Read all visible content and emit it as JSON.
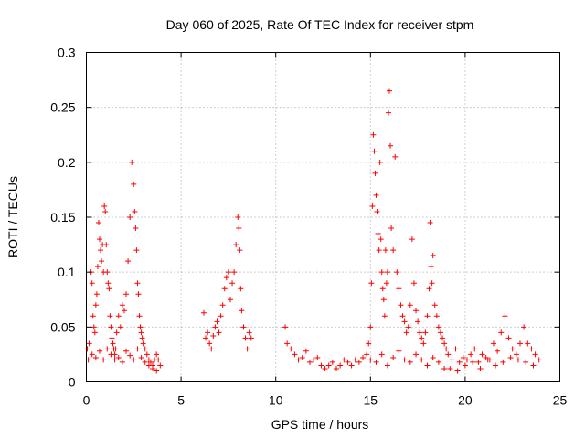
{
  "chart_data": {
    "type": "scatter",
    "title": "Day 060 of 2025, Rate Of TEC Index for receiver stpm",
    "xlabel": "GPS time / hours",
    "ylabel": "ROTI / TECUs",
    "xlim": [
      0,
      25
    ],
    "ylim": [
      0,
      0.3
    ],
    "xticks": [
      "0",
      "5",
      "10",
      "15",
      "20",
      "25"
    ],
    "yticks": [
      "0",
      "0.05",
      "0.1",
      "0.15",
      "0.2",
      "0.25",
      "0.3"
    ],
    "grid": true,
    "marker": "plus",
    "marker_color": "#ff0000",
    "series": [
      {
        "name": "ROTI",
        "x": [
          0.05,
          0.15,
          0.25,
          0.3,
          0.35,
          0.4,
          0.45,
          0.5,
          0.55,
          0.6,
          0.65,
          0.7,
          0.75,
          0.8,
          0.85,
          0.9,
          0.95,
          1.0,
          1.05,
          1.1,
          1.15,
          1.2,
          1.25,
          1.3,
          1.35,
          1.4,
          1.45,
          1.5,
          1.55,
          1.6,
          1.7,
          1.8,
          1.9,
          2.0,
          2.1,
          2.2,
          2.3,
          2.4,
          2.5,
          2.55,
          2.6,
          2.65,
          2.7,
          2.75,
          2.8,
          2.85,
          2.9,
          2.95,
          3.0,
          3.1,
          3.2,
          3.3,
          3.4,
          3.5,
          3.6,
          3.7,
          3.8,
          3.9,
          0.1,
          0.3,
          0.5,
          0.7,
          0.9,
          1.1,
          1.3,
          1.5,
          1.7,
          1.9,
          2.1,
          2.3,
          2.5,
          2.7,
          2.9,
          3.1,
          3.3,
          3.5,
          3.7,
          6.2,
          6.3,
          6.4,
          6.5,
          6.6,
          6.7,
          6.8,
          6.9,
          7.0,
          7.1,
          7.2,
          7.3,
          7.4,
          7.5,
          7.6,
          7.7,
          7.8,
          7.9,
          8.0,
          8.05,
          8.1,
          8.15,
          8.2,
          8.3,
          8.4,
          8.5,
          8.6,
          8.7,
          10.5,
          10.6,
          10.8,
          11.0,
          11.2,
          11.4,
          11.6,
          11.8,
          12.0,
          12.2,
          12.4,
          12.6,
          12.8,
          13.0,
          13.2,
          13.4,
          13.6,
          13.8,
          14.0,
          14.2,
          14.4,
          14.6,
          14.8,
          14.9,
          15.0,
          15.05,
          15.1,
          15.15,
          15.2,
          15.25,
          15.3,
          15.35,
          15.4,
          15.45,
          15.5,
          15.55,
          15.6,
          15.65,
          15.7,
          15.75,
          15.8,
          15.85,
          15.9,
          15.95,
          16.0,
          16.05,
          16.1,
          16.2,
          16.3,
          16.4,
          16.5,
          16.6,
          16.7,
          16.8,
          16.9,
          17.0,
          17.1,
          17.2,
          17.3,
          17.4,
          17.5,
          17.6,
          17.7,
          17.8,
          17.9,
          18.0,
          18.1,
          18.15,
          18.2,
          18.25,
          18.3,
          18.4,
          18.5,
          18.6,
          18.7,
          18.8,
          18.9,
          19.0,
          15.0,
          15.3,
          15.6,
          15.9,
          16.2,
          16.5,
          16.8,
          17.1,
          17.4,
          17.7,
          18.0,
          18.3,
          18.6,
          18.9,
          19.1,
          19.3,
          19.5,
          19.7,
          19.9,
          20.1,
          20.3,
          20.5,
          20.7,
          20.9,
          21.1,
          21.3,
          21.5,
          21.7,
          21.9,
          22.1,
          22.3,
          22.5,
          22.7,
          22.9,
          23.1,
          23.3,
          23.5,
          23.7,
          23.9,
          19.2,
          19.6,
          20.0,
          20.4,
          20.8,
          21.2,
          21.6,
          22.0,
          22.4,
          22.8,
          23.2,
          23.6
        ],
        "y": [
          0.03,
          0.035,
          0.1,
          0.09,
          0.06,
          0.05,
          0.045,
          0.07,
          0.08,
          0.105,
          0.145,
          0.13,
          0.12,
          0.11,
          0.125,
          0.1,
          0.16,
          0.155,
          0.125,
          0.1,
          0.09,
          0.085,
          0.06,
          0.05,
          0.04,
          0.035,
          0.03,
          0.025,
          0.03,
          0.045,
          0.06,
          0.05,
          0.07,
          0.065,
          0.08,
          0.11,
          0.15,
          0.2,
          0.18,
          0.155,
          0.14,
          0.12,
          0.09,
          0.08,
          0.06,
          0.05,
          0.045,
          0.04,
          0.035,
          0.03,
          0.025,
          0.02,
          0.018,
          0.015,
          0.02,
          0.025,
          0.02,
          0.015,
          0.02,
          0.025,
          0.022,
          0.028,
          0.02,
          0.03,
          0.025,
          0.02,
          0.022,
          0.018,
          0.028,
          0.024,
          0.02,
          0.03,
          0.022,
          0.018,
          0.015,
          0.012,
          0.01,
          0.063,
          0.04,
          0.045,
          0.035,
          0.03,
          0.042,
          0.05,
          0.055,
          0.045,
          0.06,
          0.07,
          0.085,
          0.095,
          0.1,
          0.075,
          0.09,
          0.1,
          0.125,
          0.15,
          0.14,
          0.12,
          0.085,
          0.065,
          0.05,
          0.04,
          0.03,
          0.045,
          0.04,
          0.05,
          0.035,
          0.03,
          0.025,
          0.02,
          0.022,
          0.028,
          0.018,
          0.02,
          0.022,
          0.015,
          0.012,
          0.015,
          0.018,
          0.012,
          0.015,
          0.02,
          0.018,
          0.015,
          0.02,
          0.018,
          0.022,
          0.025,
          0.035,
          0.05,
          0.09,
          0.16,
          0.225,
          0.21,
          0.19,
          0.17,
          0.155,
          0.135,
          0.12,
          0.2,
          0.13,
          0.1,
          0.085,
          0.075,
          0.06,
          0.12,
          0.09,
          0.1,
          0.245,
          0.265,
          0.215,
          0.14,
          0.12,
          0.205,
          0.1,
          0.085,
          0.07,
          0.06,
          0.055,
          0.045,
          0.05,
          0.07,
          0.13,
          0.09,
          0.065,
          0.055,
          0.045,
          0.04,
          0.035,
          0.045,
          0.06,
          0.085,
          0.145,
          0.105,
          0.09,
          0.115,
          0.07,
          0.06,
          0.05,
          0.045,
          0.04,
          0.035,
          0.03,
          0.02,
          0.018,
          0.025,
          0.015,
          0.022,
          0.028,
          0.02,
          0.018,
          0.025,
          0.02,
          0.015,
          0.022,
          0.018,
          0.012,
          0.025,
          0.02,
          0.03,
          0.018,
          0.022,
          0.02,
          0.025,
          0.03,
          0.018,
          0.025,
          0.022,
          0.02,
          0.035,
          0.028,
          0.045,
          0.06,
          0.04,
          0.03,
          0.025,
          0.035,
          0.05,
          0.035,
          0.03,
          0.025,
          0.02,
          0.012,
          0.01,
          0.015,
          0.018,
          0.012,
          0.02,
          0.015,
          0.018,
          0.022,
          0.02,
          0.018,
          0.015
        ]
      }
    ]
  }
}
